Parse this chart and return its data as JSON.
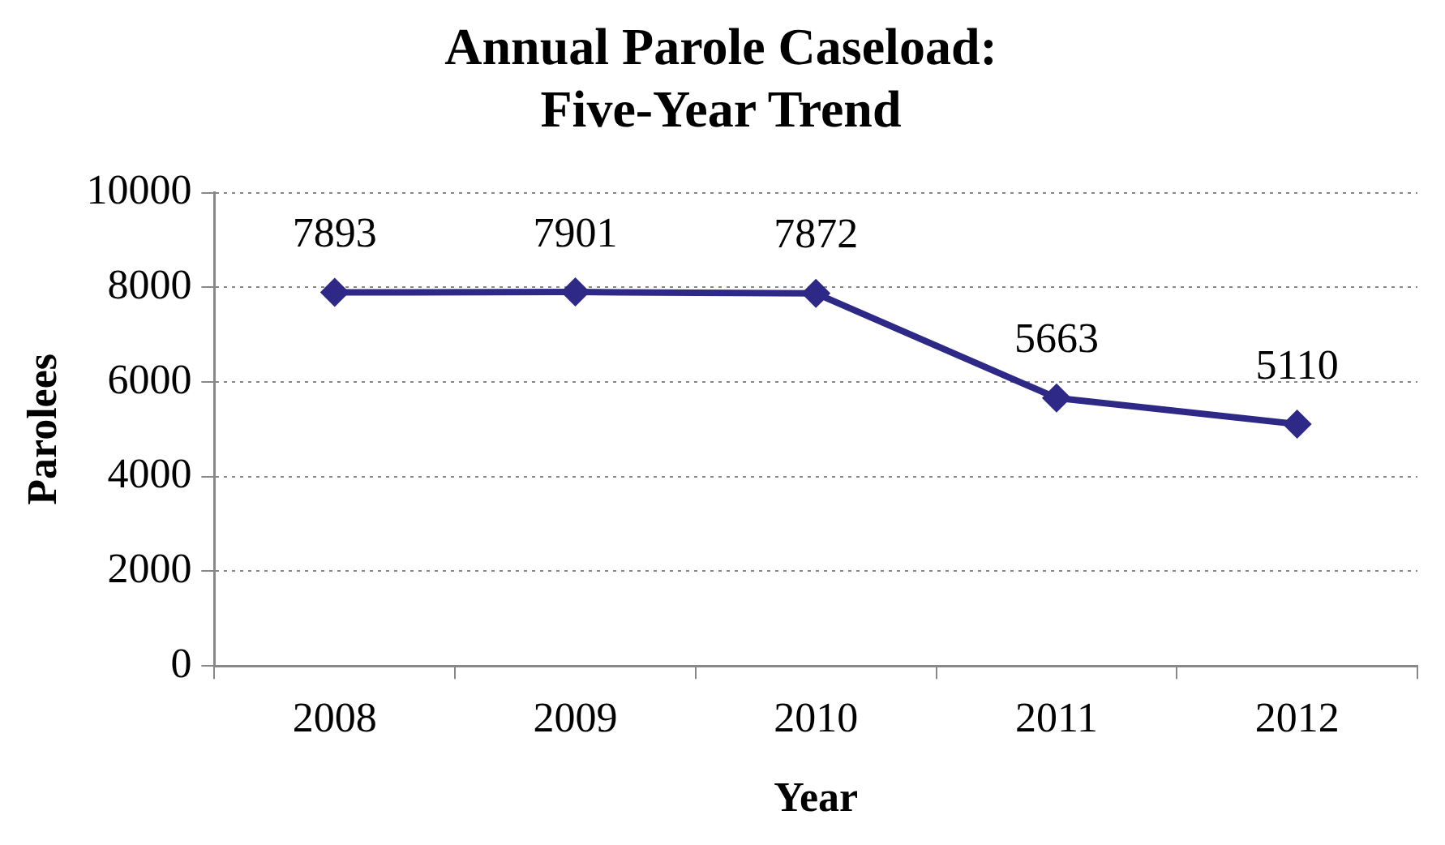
{
  "chart_data": {
    "type": "line",
    "title": "Annual Parole Caseload:\nFive-Year Trend",
    "xlabel": "Year",
    "ylabel": "Parolees",
    "categories": [
      "2008",
      "2009",
      "2010",
      "2011",
      "2012"
    ],
    "series": [
      {
        "color": "#2e2886",
        "values": [
          7893,
          7901,
          7872,
          5663,
          5110
        ]
      }
    ],
    "ylim": [
      0,
      10000
    ],
    "yticks": [
      0,
      2000,
      4000,
      6000,
      8000,
      10000
    ],
    "grid": "y",
    "legend": false,
    "marker": "diamond",
    "line_style": "solid",
    "data_labels": true
  }
}
